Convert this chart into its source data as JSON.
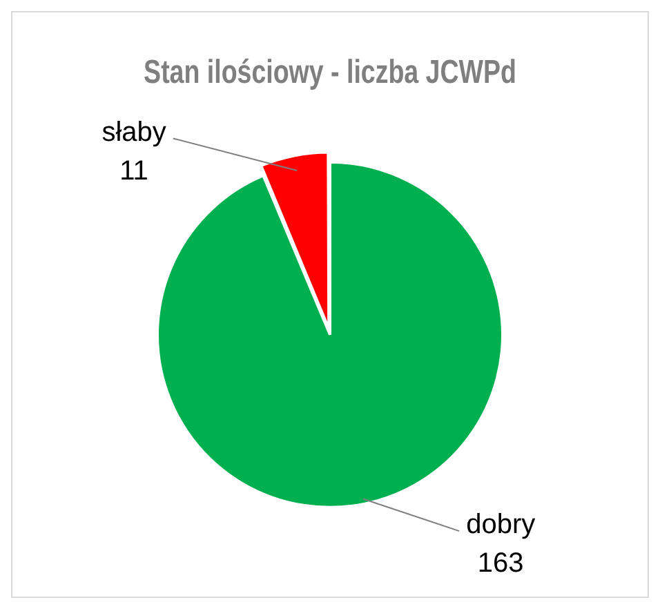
{
  "chart_data": {
    "type": "pie",
    "title": "Stan ilościowy - liczba JCWPd",
    "categories": [
      "dobry",
      "słaby"
    ],
    "values": [
      163,
      11
    ],
    "colors": [
      "#00b050",
      "#ff0000"
    ],
    "data_labels": true,
    "legend": false
  }
}
